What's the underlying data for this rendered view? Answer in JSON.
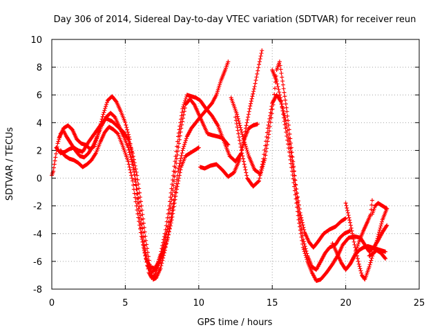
{
  "chart_data": {
    "type": "scatter",
    "title": "Day 306 of 2014, Sidereal Day-to-day VTEC variation (SDTVAR) for receiver reun",
    "xlabel": "GPS time / hours",
    "ylabel": "SDTVAR / TECUs",
    "xlim": [
      0,
      25
    ],
    "ylim": [
      -8,
      10
    ],
    "xticks": [
      0,
      5,
      10,
      15,
      20,
      25
    ],
    "yticks": [
      -8,
      -6,
      -4,
      -2,
      0,
      2,
      4,
      6,
      8,
      10
    ],
    "grid": true,
    "marker": "+",
    "color": "#ff0000",
    "series": [
      {
        "points": [
          [
            0.0,
            0.2
          ],
          [
            0.1,
            0.5
          ],
          [
            0.25,
            1.5
          ],
          [
            0.4,
            2.5
          ],
          [
            0.6,
            3.2
          ],
          [
            0.8,
            3.4
          ],
          [
            1.0,
            3.0
          ],
          [
            1.3,
            2.5
          ],
          [
            1.6,
            2.0
          ],
          [
            1.9,
            1.6
          ],
          [
            2.2,
            1.5
          ],
          [
            2.5,
            1.8
          ],
          [
            2.8,
            2.3
          ],
          [
            3.1,
            3.0
          ],
          [
            3.4,
            3.8
          ],
          [
            3.7,
            4.4
          ],
          [
            4.0,
            4.7
          ],
          [
            4.3,
            4.4
          ],
          [
            4.6,
            3.7
          ],
          [
            4.9,
            3.0
          ],
          [
            5.2,
            2.2
          ],
          [
            5.5,
            1.0
          ],
          [
            5.8,
            -0.8
          ],
          [
            6.1,
            -3.0
          ],
          [
            6.4,
            -5.5
          ],
          [
            6.6,
            -6.8
          ],
          [
            6.8,
            -7.2
          ],
          [
            7.0,
            -7.0
          ],
          [
            7.3,
            -6.2
          ],
          [
            7.6,
            -5.3
          ],
          [
            7.9,
            -4.3
          ],
          [
            8.2,
            -2.8
          ],
          [
            8.5,
            -0.8
          ],
          [
            8.8,
            0.8
          ],
          [
            9.1,
            1.6
          ],
          [
            9.4,
            1.8
          ],
          [
            9.7,
            2.0
          ],
          [
            10.0,
            2.2
          ]
        ]
      },
      {
        "points": [
          [
            0.3,
            2.2
          ],
          [
            0.6,
            1.8
          ],
          [
            0.9,
            1.9
          ],
          [
            1.2,
            2.1
          ],
          [
            1.5,
            2.2
          ],
          [
            1.8,
            2.0
          ],
          [
            2.1,
            1.9
          ],
          [
            2.5,
            2.6
          ],
          [
            2.9,
            3.2
          ],
          [
            3.3,
            3.8
          ],
          [
            3.7,
            4.3
          ],
          [
            4.1,
            4.1
          ],
          [
            4.5,
            3.7
          ],
          [
            4.9,
            3.3
          ],
          [
            5.2,
            2.8
          ],
          [
            5.5,
            1.8
          ],
          [
            5.8,
            0.2
          ],
          [
            6.1,
            -2.0
          ],
          [
            6.4,
            -4.5
          ],
          [
            6.7,
            -6.5
          ],
          [
            6.9,
            -7.3
          ],
          [
            7.1,
            -7.2
          ],
          [
            7.4,
            -6.5
          ],
          [
            7.7,
            -5.2
          ],
          [
            8.0,
            -3.6
          ],
          [
            8.3,
            -1.6
          ],
          [
            8.6,
            0.5
          ],
          [
            8.9,
            2.0
          ],
          [
            9.2,
            3.0
          ],
          [
            9.5,
            3.6
          ],
          [
            9.8,
            4.0
          ],
          [
            10.1,
            4.4
          ],
          [
            10.5,
            4.9
          ],
          [
            10.9,
            5.4
          ],
          [
            11.2,
            6.0
          ],
          [
            11.5,
            7.0
          ],
          [
            11.8,
            7.8
          ],
          [
            12.0,
            8.4
          ]
        ]
      },
      {
        "points": [
          [
            0.5,
            2.9
          ],
          [
            0.8,
            3.6
          ],
          [
            1.1,
            3.8
          ],
          [
            1.4,
            3.5
          ],
          [
            1.7,
            2.8
          ],
          [
            2.0,
            2.5
          ],
          [
            2.3,
            2.4
          ],
          [
            2.6,
            2.1
          ],
          [
            2.9,
            2.3
          ],
          [
            3.2,
            3.4
          ],
          [
            3.5,
            4.6
          ],
          [
            3.8,
            5.6
          ],
          [
            4.1,
            5.9
          ],
          [
            4.4,
            5.5
          ],
          [
            4.7,
            4.8
          ],
          [
            5.0,
            4.0
          ],
          [
            5.3,
            2.8
          ],
          [
            5.6,
            0.6
          ],
          [
            5.9,
            -2.2
          ],
          [
            6.2,
            -4.6
          ],
          [
            6.5,
            -6.3
          ],
          [
            6.8,
            -6.8
          ],
          [
            7.1,
            -6.5
          ],
          [
            7.4,
            -5.5
          ],
          [
            7.7,
            -4.0
          ],
          [
            8.0,
            -2.0
          ],
          [
            8.3,
            0.5
          ],
          [
            8.6,
            3.0
          ],
          [
            8.9,
            5.0
          ],
          [
            9.2,
            6.0
          ],
          [
            9.5,
            5.9
          ],
          [
            9.8,
            5.8
          ],
          [
            10.1,
            5.6
          ],
          [
            10.5,
            5.0
          ],
          [
            10.9,
            4.5
          ],
          [
            11.3,
            3.8
          ],
          [
            11.7,
            2.7
          ],
          [
            12.1,
            1.6
          ],
          [
            12.5,
            1.2
          ],
          [
            12.9,
            1.8
          ],
          [
            13.2,
            3.6
          ],
          [
            13.5,
            5.2
          ],
          [
            13.8,
            6.6
          ],
          [
            14.1,
            8.2
          ],
          [
            14.3,
            9.2
          ]
        ]
      },
      {
        "points": [
          [
            0.6,
            2.0
          ],
          [
            0.9,
            1.6
          ],
          [
            1.2,
            1.4
          ],
          [
            1.5,
            1.3
          ],
          [
            1.8,
            1.1
          ],
          [
            2.1,
            0.8
          ],
          [
            2.4,
            1.0
          ],
          [
            2.7,
            1.3
          ],
          [
            3.0,
            1.8
          ],
          [
            3.3,
            2.6
          ],
          [
            3.6,
            3.3
          ],
          [
            3.9,
            3.7
          ],
          [
            4.2,
            3.5
          ],
          [
            4.5,
            3.2
          ],
          [
            4.8,
            2.4
          ],
          [
            5.2,
            1.2
          ],
          [
            5.5,
            -0.2
          ],
          [
            5.8,
            -2.3
          ],
          [
            6.1,
            -4.2
          ],
          [
            6.4,
            -5.8
          ],
          [
            6.7,
            -6.4
          ],
          [
            7.0,
            -6.5
          ],
          [
            7.3,
            -6.0
          ],
          [
            7.6,
            -5.0
          ],
          [
            7.9,
            -3.5
          ],
          [
            8.2,
            -1.2
          ],
          [
            8.5,
            1.4
          ],
          [
            8.8,
            3.6
          ],
          [
            9.1,
            5.3
          ],
          [
            9.4,
            5.7
          ],
          [
            9.7,
            5.3
          ],
          [
            10.0,
            4.6
          ],
          [
            10.3,
            3.9
          ],
          [
            10.6,
            3.2
          ],
          [
            10.9,
            3.1
          ],
          [
            11.3,
            3.0
          ],
          [
            11.6,
            2.9
          ],
          [
            12.0,
            2.4
          ]
        ]
      },
      {
        "points": [
          [
            10.1,
            0.8
          ],
          [
            10.4,
            0.7
          ],
          [
            10.8,
            0.9
          ],
          [
            11.2,
            1.0
          ],
          [
            11.6,
            0.6
          ],
          [
            12.0,
            0.1
          ],
          [
            12.4,
            0.4
          ],
          [
            12.8,
            1.4
          ],
          [
            13.1,
            2.8
          ],
          [
            13.4,
            3.6
          ],
          [
            13.7,
            3.8
          ],
          [
            14.0,
            3.9
          ]
        ]
      },
      {
        "points": [
          [
            12.2,
            5.8
          ],
          [
            12.6,
            4.6
          ],
          [
            13.0,
            3.0
          ],
          [
            13.4,
            1.6
          ],
          [
            13.8,
            0.6
          ],
          [
            14.2,
            0.3
          ],
          [
            14.5,
            1.4
          ],
          [
            14.8,
            3.4
          ],
          [
            15.1,
            5.6
          ],
          [
            15.3,
            7.8
          ],
          [
            15.5,
            8.4
          ],
          [
            15.7,
            7.0
          ],
          [
            16.0,
            4.8
          ],
          [
            16.3,
            2.2
          ],
          [
            16.6,
            -0.5
          ],
          [
            16.9,
            -2.5
          ],
          [
            17.2,
            -3.9
          ],
          [
            17.5,
            -4.6
          ],
          [
            17.8,
            -5.0
          ],
          [
            18.1,
            -4.6
          ],
          [
            18.5,
            -4.0
          ],
          [
            18.9,
            -3.7
          ],
          [
            19.3,
            -3.5
          ],
          [
            19.7,
            -3.1
          ],
          [
            20.0,
            -2.9
          ]
        ]
      },
      {
        "points": [
          [
            12.5,
            4.4
          ],
          [
            12.9,
            2.0
          ],
          [
            13.3,
            0.0
          ],
          [
            13.7,
            -0.6
          ],
          [
            14.1,
            -0.2
          ],
          [
            14.4,
            1.4
          ],
          [
            14.7,
            3.6
          ],
          [
            15.0,
            5.4
          ],
          [
            15.3,
            6.0
          ],
          [
            15.6,
            5.5
          ],
          [
            15.9,
            4.2
          ],
          [
            16.2,
            2.4
          ],
          [
            16.5,
            0.2
          ],
          [
            16.8,
            -2.4
          ],
          [
            17.1,
            -4.4
          ],
          [
            17.4,
            -5.6
          ],
          [
            17.7,
            -6.4
          ],
          [
            18.0,
            -6.6
          ],
          [
            18.3,
            -6.0
          ],
          [
            18.6,
            -5.4
          ],
          [
            18.9,
            -5.0
          ],
          [
            19.3,
            -4.8
          ],
          [
            19.6,
            -4.3
          ],
          [
            19.9,
            -4.0
          ],
          [
            20.3,
            -3.8
          ]
        ]
      },
      {
        "points": [
          [
            15.0,
            7.8
          ],
          [
            15.3,
            7.0
          ],
          [
            15.6,
            5.6
          ],
          [
            15.9,
            3.6
          ],
          [
            16.2,
            1.6
          ],
          [
            16.5,
            -0.6
          ],
          [
            16.8,
            -3.0
          ],
          [
            17.1,
            -5.0
          ],
          [
            17.4,
            -6.0
          ],
          [
            17.7,
            -6.8
          ],
          [
            18.0,
            -7.4
          ],
          [
            18.3,
            -7.3
          ],
          [
            18.7,
            -6.8
          ],
          [
            19.1,
            -6.2
          ],
          [
            19.5,
            -5.5
          ],
          [
            19.8,
            -4.8
          ],
          [
            20.2,
            -4.3
          ],
          [
            20.6,
            -4.2
          ],
          [
            21.0,
            -4.3
          ],
          [
            21.3,
            -4.8
          ],
          [
            21.6,
            -5.3
          ],
          [
            21.9,
            -5.0
          ],
          [
            22.2,
            -4.5
          ],
          [
            22.5,
            -3.9
          ],
          [
            22.8,
            -3.4
          ]
        ]
      },
      {
        "points": [
          [
            19.1,
            -4.7
          ],
          [
            19.4,
            -5.4
          ],
          [
            19.7,
            -6.1
          ],
          [
            20.0,
            -6.6
          ],
          [
            20.3,
            -6.2
          ],
          [
            20.6,
            -5.6
          ],
          [
            20.9,
            -5.2
          ],
          [
            21.2,
            -5.0
          ],
          [
            21.5,
            -4.9
          ],
          [
            21.8,
            -5.0
          ],
          [
            22.1,
            -5.1
          ],
          [
            22.4,
            -5.2
          ],
          [
            22.7,
            -5.3
          ]
        ]
      },
      {
        "points": [
          [
            20.0,
            -1.8
          ],
          [
            20.3,
            -3.2
          ],
          [
            20.6,
            -4.8
          ],
          [
            20.9,
            -6.2
          ],
          [
            21.1,
            -7.0
          ],
          [
            21.3,
            -7.3
          ],
          [
            21.6,
            -6.4
          ],
          [
            21.9,
            -5.3
          ],
          [
            22.2,
            -4.2
          ],
          [
            22.5,
            -3.0
          ],
          [
            22.8,
            -2.2
          ]
        ]
      },
      {
        "points": [
          [
            20.3,
            -6.2
          ],
          [
            20.6,
            -5.6
          ],
          [
            20.9,
            -4.6
          ],
          [
            21.2,
            -3.8
          ],
          [
            21.5,
            -3.1
          ],
          [
            21.7,
            -2.6
          ],
          [
            21.8,
            -1.6
          ]
        ]
      },
      {
        "points": [
          [
            21.6,
            -5.6
          ],
          [
            21.9,
            -5.4
          ],
          [
            22.1,
            -5.2
          ],
          [
            22.4,
            -5.4
          ],
          [
            22.7,
            -5.8
          ]
        ]
      },
      {
        "points": [
          [
            21.8,
            -2.6
          ],
          [
            22.0,
            -2.0
          ],
          [
            22.2,
            -1.8
          ],
          [
            22.5,
            -2.0
          ],
          [
            22.8,
            -2.2
          ]
        ]
      }
    ]
  }
}
